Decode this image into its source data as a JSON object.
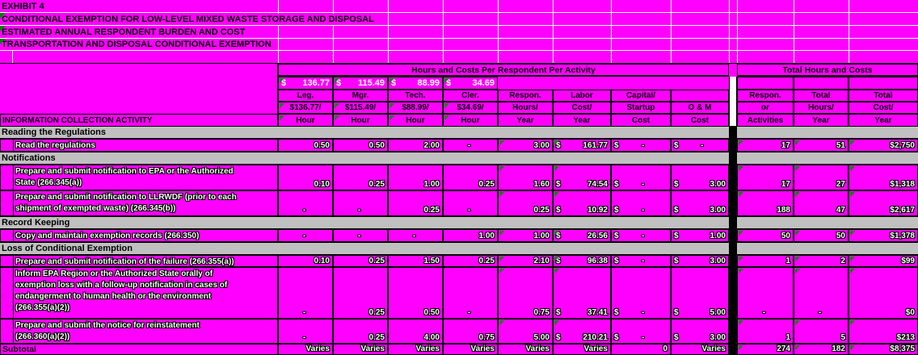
{
  "titles": [
    "EXHIBIT 4",
    "CONDITIONAL EXEMPTION FOR LOW-LEVEL MIXED WASTE STORAGE AND DISPOSAL",
    "ESTIMATED ANNUAL RESPONDENT BURDEN AND COST",
    "TRANSPORTATION AND DISPOSAL CONDITIONAL EXEMPTION"
  ],
  "colors": {
    "cell_magenta": "#FF00FF",
    "section_gray": "#C0C0C0",
    "flag_green": "#008000",
    "separator_black": "#000000"
  },
  "header": {
    "group_left": "Hours and Costs Per Respondent Per Activity",
    "group_right": "Total Hours and Costs",
    "info_label": "INFORMATION COLLECTION ACTIVITY",
    "rates": [
      {
        "currency": "$",
        "value": "136.77"
      },
      {
        "currency": "$",
        "value": "115.49"
      },
      {
        "currency": "$",
        "value": "88.99"
      },
      {
        "currency": "$",
        "value": "34.69"
      }
    ],
    "columns": [
      {
        "id": "leg",
        "lines": [
          "Leg.",
          "$136.77/",
          "Hour"
        ],
        "flagged": true
      },
      {
        "id": "mgr",
        "lines": [
          "Mgr.",
          "$115.49/",
          "Hour"
        ],
        "flagged": true
      },
      {
        "id": "tech",
        "lines": [
          "Tech.",
          "$88.99/",
          "Hour"
        ],
        "flagged": true
      },
      {
        "id": "cler",
        "lines": [
          "Cler.",
          "$34.69/",
          "Hour"
        ],
        "flagged": true
      },
      {
        "id": "hours",
        "lines": [
          "Respon.",
          "Hours/",
          "Year"
        ],
        "flagged": false
      },
      {
        "id": "labor",
        "lines": [
          "Labor",
          "Cost/",
          "Year"
        ],
        "flagged": false
      },
      {
        "id": "capital",
        "lines": [
          "Capital/",
          "Startup",
          "Cost"
        ],
        "flagged": false
      },
      {
        "id": "om",
        "lines": [
          "",
          "O & M",
          "Cost"
        ],
        "flagged": false
      },
      {
        "id": "activities",
        "lines": [
          "Respon.",
          "or",
          "Activities"
        ],
        "flagged": false
      },
      {
        "id": "total_hours",
        "lines": [
          "Total",
          "Hours/",
          "Year"
        ],
        "flagged": false
      },
      {
        "id": "total_cost",
        "lines": [
          "Total",
          "Cost/",
          "Year"
        ],
        "flagged": false
      }
    ]
  },
  "rows": [
    {
      "type": "section",
      "label": "Reading the Regulations"
    },
    {
      "type": "item",
      "label_lines": [
        "Read the regulations"
      ],
      "leg": "0.50",
      "mgr": "0.50",
      "tech": "2.00",
      "cler": "-",
      "hours": "3.00",
      "labor": "161.77",
      "capital": "-",
      "om": "-",
      "activities": "17",
      "total_hours": "51",
      "total_cost": "$2,750"
    },
    {
      "type": "section",
      "label": "Notifications"
    },
    {
      "type": "item",
      "label_lines": [
        "Prepare and submit notification to EPA or the Authorized",
        "State (266.345(a))"
      ],
      "leg": "0.10",
      "mgr": "0.25",
      "tech": "1.00",
      "cler": "0.25",
      "hours": "1.60",
      "labor": "74.54",
      "capital": "-",
      "om": "3.00",
      "activities": "17",
      "total_hours": "27",
      "total_cost": "$1,318"
    },
    {
      "type": "item",
      "label_lines": [
        "Prepare and submit notification to LLRWDF (prior to each",
        "shipment of exempted waste) (266.345(b))"
      ],
      "leg": "-",
      "mgr": "-",
      "tech": "0.25",
      "cler": "-",
      "hours": "0.25",
      "labor": "10.92",
      "capital": "-",
      "om": "3.00",
      "activities": "188",
      "total_hours": "47",
      "total_cost": "$2,617"
    },
    {
      "type": "section",
      "label": "Record Keeping"
    },
    {
      "type": "item",
      "label_lines": [
        "Copy and maintain exemption records (266.350)"
      ],
      "leg": "-",
      "mgr": "-",
      "tech": "-",
      "cler": "1.00",
      "hours": "1.00",
      "labor": "26.56",
      "capital": "-",
      "om": "1.00",
      "activities": "50",
      "total_hours": "50",
      "total_cost": "$1,378"
    },
    {
      "type": "section",
      "label": "Loss of Conditional Exemption"
    },
    {
      "type": "item",
      "label_lines": [
        "Prepare and submit notification of the failure (266.355(a))"
      ],
      "leg": "0.10",
      "mgr": "0.25",
      "tech": "1.50",
      "cler": "0.25",
      "hours": "2.10",
      "labor": "96.38",
      "capital": "-",
      "om": "3.00",
      "activities": "1",
      "total_hours": "2",
      "total_cost": "$99"
    },
    {
      "type": "item",
      "label_lines": [
        "Inform EPA Region or the Authorized State orally of",
        "exemption loss with a follow-up notification in cases of",
        "endangerment to human health or the environment",
        "(266.355(a)(2))"
      ],
      "leg": "-",
      "mgr": "0.25",
      "tech": "0.50",
      "cler": "-",
      "hours": "0.75",
      "labor": "37.41",
      "capital": "-",
      "om": "5.00",
      "activities": "-",
      "total_hours": "-",
      "total_cost": "$0"
    },
    {
      "type": "item",
      "label_lines": [
        "Prepare and submit the notice for reinstatement",
        "(266.360(a)(2))"
      ],
      "leg": "-",
      "mgr": "0.25",
      "tech": "4.00",
      "cler": "0.75",
      "hours": "5.00",
      "labor": "210.21",
      "capital": "-",
      "om": "3.00",
      "activities": "1",
      "total_hours": "5",
      "total_cost": "$213"
    },
    {
      "type": "subtotal",
      "label_lines": [
        "Subtotal"
      ],
      "label": "Subtotal",
      "leg": "Varies",
      "mgr": "Varies",
      "tech": "Varies",
      "cler": "Varies",
      "hours": "Varies",
      "labor": "Varies",
      "capital": "0",
      "om": "Varies",
      "activities": "274",
      "total_hours": "182",
      "total_cost": "$8,375"
    }
  ]
}
